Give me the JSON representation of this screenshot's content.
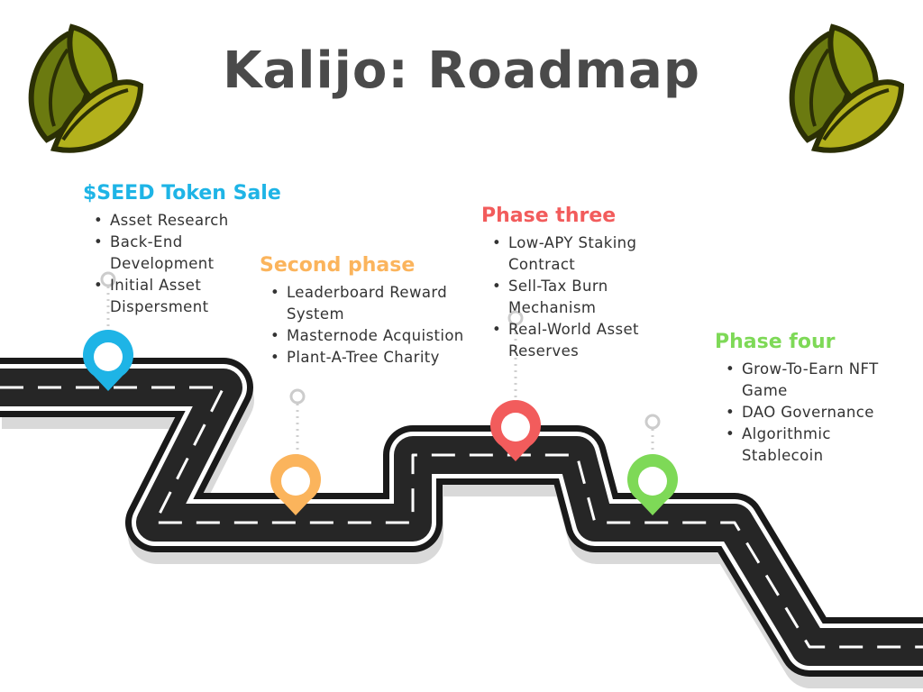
{
  "title": "Kalijo: Roadmap",
  "colors": {
    "phase1": "#1EB4E6",
    "phase2": "#FBB45C",
    "phase3": "#F25C5C",
    "phase4": "#7ED957",
    "road": "#222222",
    "title": "#4a4a4a"
  },
  "icons": [
    "seed-logo-icon",
    "map-pin-icon"
  ],
  "phases": [
    {
      "title": "$SEED Token Sale",
      "items": [
        "Asset Research",
        "Back-End Development",
        "Initial Asset Dispersment"
      ]
    },
    {
      "title": "Second phase",
      "items": [
        "Leaderboard Reward System",
        "Masternode Acquistion",
        "Plant-A-Tree Charity"
      ]
    },
    {
      "title": "Phase three",
      "items": [
        "Low-APY Staking Contract",
        "Sell-Tax Burn Mechanism",
        "Real-World Asset Reserves"
      ]
    },
    {
      "title": "Phase four",
      "items": [
        "Grow-To-Earn NFT Game",
        "DAO Governance",
        "Algorithmic Stablecoin"
      ]
    }
  ]
}
